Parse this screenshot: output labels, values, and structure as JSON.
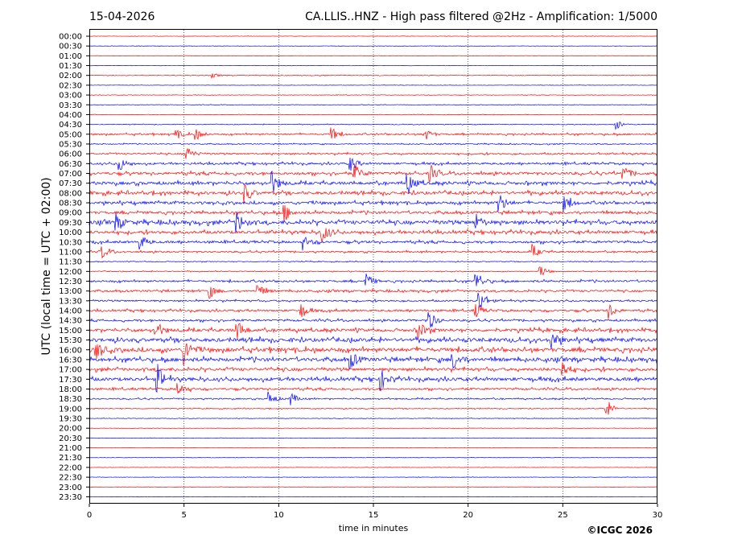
{
  "header": {
    "date": "15-04-2026",
    "title": "CA.LLIS..HNZ - High pass filtered @2Hz - Amplification: 1/5000"
  },
  "footer": {
    "copyright": "©ICGC 2026"
  },
  "chart_data": {
    "type": "line",
    "title": "CA.LLIS..HNZ - High pass filtered @2Hz - Amplification: 1/5000",
    "xlabel": "time in minutes",
    "ylabel": "UTC (local time = UTC + 02:00)",
    "xlim": [
      0,
      30
    ],
    "x_ticks": [
      0,
      5,
      10,
      15,
      20,
      25,
      30
    ],
    "grid": "vertical dotted lines at x ticks",
    "trace_colors": [
      "#ff0000",
      "#0000ff"
    ],
    "rows": [
      "00:00",
      "00:30",
      "01:00",
      "01:30",
      "02:00",
      "02:30",
      "03:00",
      "03:30",
      "04:00",
      "04:30",
      "05:00",
      "05:30",
      "06:00",
      "06:30",
      "07:00",
      "07:30",
      "08:00",
      "08:30",
      "09:00",
      "09:30",
      "10:00",
      "10:30",
      "11:00",
      "11:30",
      "12:00",
      "12:30",
      "13:00",
      "13:30",
      "14:00",
      "14:30",
      "15:00",
      "15:30",
      "16:00",
      "16:30",
      "17:00",
      "17:30",
      "18:00",
      "18:30",
      "19:00",
      "19:30",
      "20:00",
      "20:30",
      "21:00",
      "21:30",
      "22:00",
      "22:30",
      "23:00",
      "23:30"
    ],
    "activity": [
      0.2,
      0.2,
      0.2,
      0.2,
      0.4,
      0.2,
      0.3,
      0.3,
      0.3,
      0.4,
      1.0,
      0.6,
      1.0,
      1.2,
      1.6,
      1.8,
      1.8,
      1.6,
      1.6,
      2.2,
      1.8,
      1.4,
      1.0,
      0.5,
      0.5,
      1.2,
      1.2,
      1.0,
      1.2,
      1.2,
      1.8,
      2.2,
      2.4,
      2.2,
      1.8,
      2.0,
      1.2,
      0.8,
      0.5,
      0.3,
      0.2,
      0.2,
      0.2,
      0.2,
      0.2,
      0.2,
      0.2,
      0.2
    ],
    "events": [
      {
        "row": "02:00",
        "minute": 6.5,
        "amp": 0.3
      },
      {
        "row": "04:30",
        "minute": 27.8,
        "amp": 0.8
      },
      {
        "row": "05:00",
        "minute": 4.5,
        "amp": 0.8
      },
      {
        "row": "05:00",
        "minute": 5.6,
        "amp": 0.8
      },
      {
        "row": "05:00",
        "minute": 12.8,
        "amp": 1.0
      },
      {
        "row": "05:00",
        "minute": 17.7,
        "amp": 0.9
      },
      {
        "row": "06:00",
        "minute": 5.1,
        "amp": 1.3
      },
      {
        "row": "06:30",
        "minute": 1.6,
        "amp": 1.0
      },
      {
        "row": "06:30",
        "minute": 13.8,
        "amp": 1.0
      },
      {
        "row": "07:00",
        "minute": 14.0,
        "amp": 1.3
      },
      {
        "row": "07:00",
        "minute": 18.0,
        "amp": 1.1
      },
      {
        "row": "07:00",
        "minute": 28.2,
        "amp": 1.0
      },
      {
        "row": "07:30",
        "minute": 9.6,
        "amp": 1.8
      },
      {
        "row": "07:30",
        "minute": 16.8,
        "amp": 1.5
      },
      {
        "row": "08:00",
        "minute": 8.2,
        "amp": 1.3
      },
      {
        "row": "08:30",
        "minute": 21.6,
        "amp": 1.6
      },
      {
        "row": "08:30",
        "minute": 25.1,
        "amp": 1.2
      },
      {
        "row": "09:00",
        "minute": 10.3,
        "amp": 1.3
      },
      {
        "row": "09:30",
        "minute": 1.4,
        "amp": 1.2
      },
      {
        "row": "09:30",
        "minute": 7.8,
        "amp": 1.5
      },
      {
        "row": "09:30",
        "minute": 20.4,
        "amp": 1.2
      },
      {
        "row": "10:00",
        "minute": 12.3,
        "amp": 1.4
      },
      {
        "row": "10:30",
        "minute": 2.7,
        "amp": 1.0
      },
      {
        "row": "10:30",
        "minute": 11.3,
        "amp": 0.9
      },
      {
        "row": "11:00",
        "minute": 0.6,
        "amp": 1.2
      },
      {
        "row": "11:00",
        "minute": 23.4,
        "amp": 1.0
      },
      {
        "row": "12:00",
        "minute": 23.8,
        "amp": 0.9
      },
      {
        "row": "12:30",
        "minute": 14.6,
        "amp": 1.2
      },
      {
        "row": "12:30",
        "minute": 20.4,
        "amp": 1.4
      },
      {
        "row": "13:00",
        "minute": 6.3,
        "amp": 1.1
      },
      {
        "row": "13:00",
        "minute": 8.9,
        "amp": 1.0
      },
      {
        "row": "13:30",
        "minute": 20.6,
        "amp": 1.6
      },
      {
        "row": "14:00",
        "minute": 11.2,
        "amp": 1.0
      },
      {
        "row": "14:00",
        "minute": 20.4,
        "amp": 1.0
      },
      {
        "row": "14:00",
        "minute": 27.4,
        "amp": 1.2
      },
      {
        "row": "14:30",
        "minute": 17.9,
        "amp": 1.6
      },
      {
        "row": "15:00",
        "minute": 3.5,
        "amp": 1.2
      },
      {
        "row": "15:00",
        "minute": 7.8,
        "amp": 1.4
      },
      {
        "row": "15:00",
        "minute": 17.4,
        "amp": 1.2
      },
      {
        "row": "15:30",
        "minute": 24.4,
        "amp": 1.3
      },
      {
        "row": "16:00",
        "minute": 0.3,
        "amp": 1.5
      },
      {
        "row": "16:00",
        "minute": 5.0,
        "amp": 2.0
      },
      {
        "row": "16:30",
        "minute": 13.8,
        "amp": 1.3
      },
      {
        "row": "16:30",
        "minute": 19.2,
        "amp": 1.4
      },
      {
        "row": "17:00",
        "minute": 25.0,
        "amp": 1.2
      },
      {
        "row": "17:30",
        "minute": 3.6,
        "amp": 2.0
      },
      {
        "row": "17:30",
        "minute": 15.4,
        "amp": 1.4
      },
      {
        "row": "18:00",
        "minute": 4.7,
        "amp": 1.0
      },
      {
        "row": "18:30",
        "minute": 9.5,
        "amp": 1.0
      },
      {
        "row": "18:30",
        "minute": 10.6,
        "amp": 1.0
      },
      {
        "row": "19:00",
        "minute": 27.3,
        "amp": 1.4
      }
    ]
  }
}
